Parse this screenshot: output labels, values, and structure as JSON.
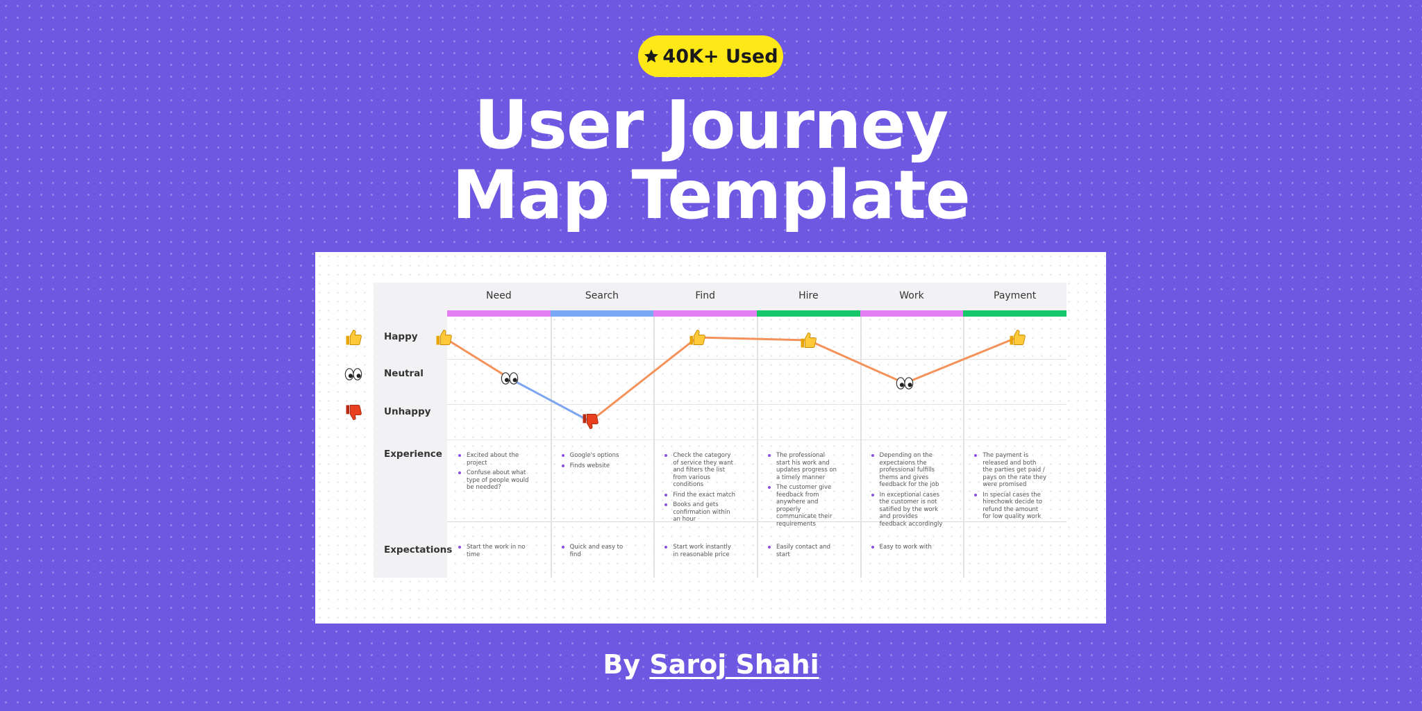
{
  "badge": {
    "text": "40K+ Used"
  },
  "title": [
    "User Journey",
    "Map Template"
  ],
  "byline": {
    "prefix": "By",
    "author": "Saroj Shahi"
  },
  "map": {
    "moods": [
      "Happy",
      "Neutral",
      "Unhappy"
    ],
    "row_labels": [
      "Experience",
      "Expectations"
    ],
    "stages": [
      {
        "name": "Need",
        "color": "#e37ff2",
        "experience": [
          "Excited about the project",
          "Confuse about what type of people would be needed?"
        ],
        "expectations": [
          "Start the work in no time"
        ]
      },
      {
        "name": "Search",
        "color": "#79a9f5",
        "experience": [
          "Google's options",
          "Finds website"
        ],
        "expectations": [
          "Quick and easy to find"
        ]
      },
      {
        "name": "Find",
        "color": "#e37ff2",
        "experience": [
          "Check the category of service they want and filters the list from various conditions",
          "Find the exact match",
          "Books and gets confirmation within an hour"
        ],
        "expectations": [
          "Start work instantly in reasonable price"
        ]
      },
      {
        "name": "Hire",
        "color": "#17c86b",
        "experience": [
          "The professional start his work and updates progress on a timely manner",
          "The customer give feedback from anywhere and properly communicate their requirements"
        ],
        "expectations": [
          "Easily contact and start"
        ]
      },
      {
        "name": "Work",
        "color": "#e37ff2",
        "experience": [
          "Depending on the expectaions the professional fulfills thems and gives feedback for the job",
          "In exceptional cases the customer is not satified by the work and provides feedback accordingly"
        ],
        "expectations": [
          "Easy to work with"
        ]
      },
      {
        "name": "Payment",
        "color": "#17c86b",
        "experience": [
          "The payment is released and both the parties get paid / pays on the rate they were promised",
          "In special cases the hirechowk decide to refund the amount for low quality work"
        ],
        "expectations": []
      }
    ]
  }
}
